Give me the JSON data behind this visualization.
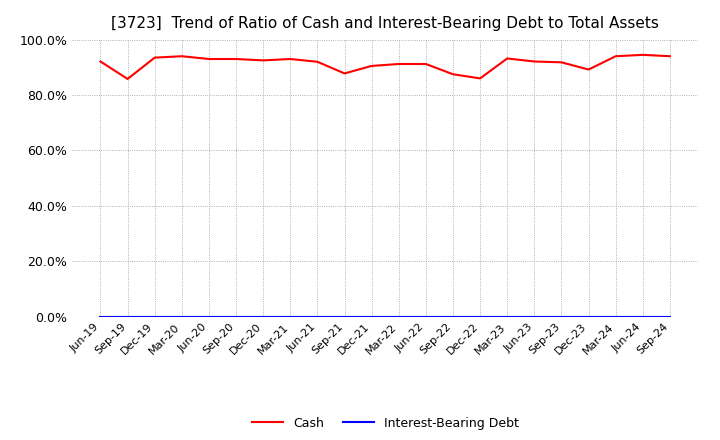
{
  "title": "[3723]  Trend of Ratio of Cash and Interest-Bearing Debt to Total Assets",
  "labels": [
    "Jun-19",
    "Sep-19",
    "Dec-19",
    "Mar-20",
    "Jun-20",
    "Sep-20",
    "Dec-20",
    "Mar-21",
    "Jun-21",
    "Sep-21",
    "Dec-21",
    "Mar-22",
    "Jun-22",
    "Sep-22",
    "Dec-22",
    "Mar-23",
    "Jun-23",
    "Sep-23",
    "Dec-23",
    "Mar-24",
    "Jun-24",
    "Sep-24"
  ],
  "cash": [
    0.921,
    0.858,
    0.935,
    0.94,
    0.93,
    0.93,
    0.925,
    0.93,
    0.92,
    0.878,
    0.905,
    0.912,
    0.912,
    0.875,
    0.86,
    0.932,
    0.921,
    0.918,
    0.892,
    0.94,
    0.945,
    0.94
  ],
  "interest_bearing_debt": [
    0.0,
    0.0,
    0.0,
    0.0,
    0.0,
    0.0,
    0.0,
    0.0,
    0.0,
    0.0,
    0.0,
    0.0,
    0.0,
    0.0,
    0.0,
    0.0,
    0.0,
    0.0,
    0.0,
    0.0,
    0.0,
    0.0
  ],
  "cash_color": "#ff0000",
  "debt_color": "#0000ff",
  "background_color": "#ffffff",
  "plot_bg_color": "#ffffff",
  "grid_color": "#999999",
  "ylim": [
    0.0,
    1.0
  ],
  "yticks": [
    0.0,
    0.2,
    0.4,
    0.6,
    0.8,
    1.0
  ],
  "title_fontsize": 11,
  "legend_cash": "Cash",
  "legend_debt": "Interest-Bearing Debt",
  "line_width": 1.5
}
